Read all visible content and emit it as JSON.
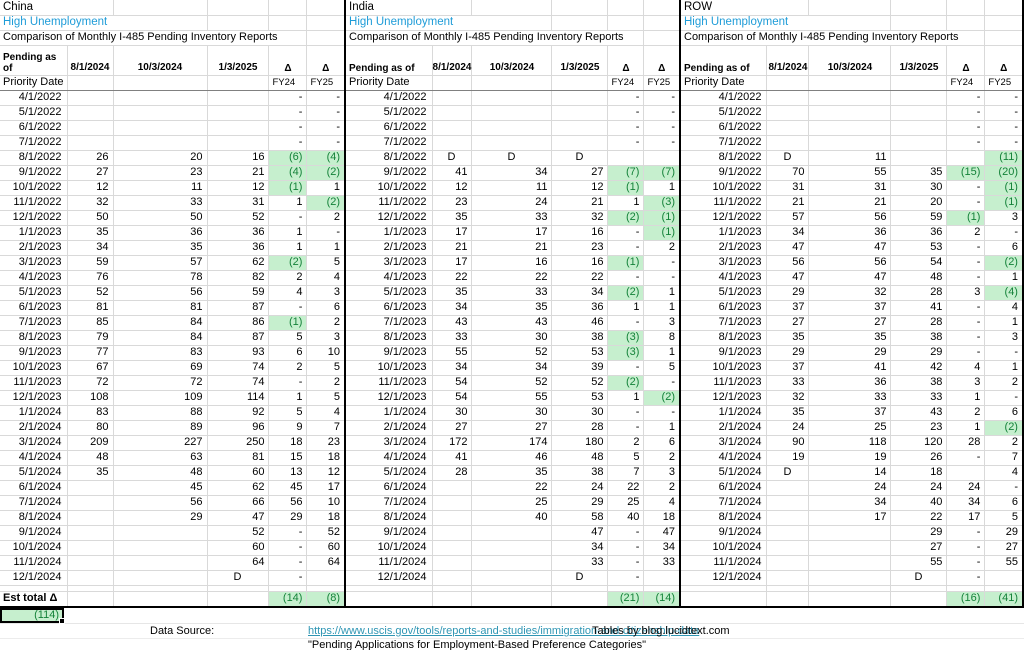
{
  "colors": {
    "accent_blue": "#1E9CD8",
    "good_fill": "#C6EFCE",
    "good_text": "#148239",
    "link": "#2F96B4",
    "grid": "#D9D9D9"
  },
  "columns": {
    "report_dates": [
      "8/1/2024",
      "10/3/2024",
      "1/3/2025"
    ],
    "delta_symbol": "Δ",
    "fy_labels": [
      "FY24",
      "FY25"
    ],
    "priority_label": "Priority Date"
  },
  "panels": [
    {
      "region": "China",
      "subtitle": "High Unemployment",
      "caption": "Comparison of Monthly I-485 Pending Inventory Reports",
      "pending_label": "Pending as\nof",
      "est_label": "Est total Δ",
      "est": [
        "(14)",
        "(8)"
      ],
      "rows": [
        [
          "4/1/2022",
          "",
          "",
          "",
          "-",
          "-"
        ],
        [
          "5/1/2022",
          "",
          "",
          "",
          "-",
          "-"
        ],
        [
          "6/1/2022",
          "",
          "",
          "",
          "-",
          "-"
        ],
        [
          "7/1/2022",
          "",
          "",
          "",
          "-",
          "-"
        ],
        [
          "8/1/2022",
          "26",
          "20",
          "16",
          "(6)",
          "(4)"
        ],
        [
          "9/1/2022",
          "27",
          "23",
          "21",
          "(4)",
          "(2)"
        ],
        [
          "10/1/2022",
          "12",
          "11",
          "12",
          "(1)",
          "1"
        ],
        [
          "11/1/2022",
          "32",
          "33",
          "31",
          "1",
          "(2)"
        ],
        [
          "12/1/2022",
          "50",
          "50",
          "52",
          "-",
          "2"
        ],
        [
          "1/1/2023",
          "35",
          "36",
          "36",
          "1",
          "-"
        ],
        [
          "2/1/2023",
          "34",
          "35",
          "36",
          "1",
          "1"
        ],
        [
          "3/1/2023",
          "59",
          "57",
          "62",
          "(2)",
          "5"
        ],
        [
          "4/1/2023",
          "76",
          "78",
          "82",
          "2",
          "4"
        ],
        [
          "5/1/2023",
          "52",
          "56",
          "59",
          "4",
          "3"
        ],
        [
          "6/1/2023",
          "81",
          "81",
          "87",
          "-",
          "6"
        ],
        [
          "7/1/2023",
          "85",
          "84",
          "86",
          "(1)",
          "2"
        ],
        [
          "8/1/2023",
          "79",
          "84",
          "87",
          "5",
          "3"
        ],
        [
          "9/1/2023",
          "77",
          "83",
          "93",
          "6",
          "10"
        ],
        [
          "10/1/2023",
          "67",
          "69",
          "74",
          "2",
          "5"
        ],
        [
          "11/1/2023",
          "72",
          "72",
          "74",
          "-",
          "2"
        ],
        [
          "12/1/2023",
          "108",
          "109",
          "114",
          "1",
          "5"
        ],
        [
          "1/1/2024",
          "83",
          "88",
          "92",
          "5",
          "4"
        ],
        [
          "2/1/2024",
          "80",
          "89",
          "96",
          "9",
          "7"
        ],
        [
          "3/1/2024",
          "209",
          "227",
          "250",
          "18",
          "23"
        ],
        [
          "4/1/2024",
          "48",
          "63",
          "81",
          "15",
          "18"
        ],
        [
          "5/1/2024",
          "35",
          "48",
          "60",
          "13",
          "12"
        ],
        [
          "6/1/2024",
          "",
          "45",
          "62",
          "45",
          "17"
        ],
        [
          "7/1/2024",
          "",
          "56",
          "66",
          "56",
          "10"
        ],
        [
          "8/1/2024",
          "",
          "29",
          "47",
          "29",
          "18"
        ],
        [
          "9/1/2024",
          "",
          "",
          "52",
          "-",
          "52"
        ],
        [
          "10/1/2024",
          "",
          "",
          "60",
          "-",
          "60"
        ],
        [
          "11/1/2024",
          "",
          "",
          "64",
          "-",
          "64"
        ],
        [
          "12/1/2024",
          "",
          "",
          "D",
          "-",
          ""
        ]
      ]
    },
    {
      "region": "India",
      "subtitle": "High Unemployment",
      "caption": "Comparison of Monthly I-485 Pending Inventory Reports",
      "pending_label": "Pending as of",
      "est_label": "",
      "est": [
        "(21)",
        "(14)"
      ],
      "rows": [
        [
          "4/1/2022",
          "",
          "",
          "",
          "-",
          "-"
        ],
        [
          "5/1/2022",
          "",
          "",
          "",
          "-",
          "-"
        ],
        [
          "6/1/2022",
          "",
          "",
          "",
          "-",
          "-"
        ],
        [
          "7/1/2022",
          "",
          "",
          "",
          "-",
          "-"
        ],
        [
          "8/1/2022",
          "D",
          "D",
          "D",
          "",
          ""
        ],
        [
          "9/1/2022",
          "41",
          "34",
          "27",
          "(7)",
          "(7)"
        ],
        [
          "10/1/2022",
          "12",
          "11",
          "12",
          "(1)",
          "1"
        ],
        [
          "11/1/2022",
          "23",
          "24",
          "21",
          "1",
          "(3)"
        ],
        [
          "12/1/2022",
          "35",
          "33",
          "32",
          "(2)",
          "(1)"
        ],
        [
          "1/1/2023",
          "17",
          "17",
          "16",
          "-",
          "(1)"
        ],
        [
          "2/1/2023",
          "21",
          "21",
          "23",
          "-",
          "2"
        ],
        [
          "3/1/2023",
          "17",
          "16",
          "16",
          "(1)",
          "-"
        ],
        [
          "4/1/2023",
          "22",
          "22",
          "22",
          "-",
          "-"
        ],
        [
          "5/1/2023",
          "35",
          "33",
          "34",
          "(2)",
          "1"
        ],
        [
          "6/1/2023",
          "34",
          "35",
          "36",
          "1",
          "1"
        ],
        [
          "7/1/2023",
          "43",
          "43",
          "46",
          "-",
          "3"
        ],
        [
          "8/1/2023",
          "33",
          "30",
          "38",
          "(3)",
          "8"
        ],
        [
          "9/1/2023",
          "55",
          "52",
          "53",
          "(3)",
          "1"
        ],
        [
          "10/1/2023",
          "34",
          "34",
          "39",
          "-",
          "5"
        ],
        [
          "11/1/2023",
          "54",
          "52",
          "52",
          "(2)",
          "-"
        ],
        [
          "12/1/2023",
          "54",
          "55",
          "53",
          "1",
          "(2)"
        ],
        [
          "1/1/2024",
          "30",
          "30",
          "30",
          "-",
          "-"
        ],
        [
          "2/1/2024",
          "27",
          "27",
          "28",
          "-",
          "1"
        ],
        [
          "3/1/2024",
          "172",
          "174",
          "180",
          "2",
          "6"
        ],
        [
          "4/1/2024",
          "41",
          "46",
          "48",
          "5",
          "2"
        ],
        [
          "5/1/2024",
          "28",
          "35",
          "38",
          "7",
          "3"
        ],
        [
          "6/1/2024",
          "",
          "22",
          "24",
          "22",
          "2"
        ],
        [
          "7/1/2024",
          "",
          "25",
          "29",
          "25",
          "4"
        ],
        [
          "8/1/2024",
          "",
          "40",
          "58",
          "40",
          "18"
        ],
        [
          "9/1/2024",
          "",
          "",
          "47",
          "-",
          "47"
        ],
        [
          "10/1/2024",
          "",
          "",
          "34",
          "-",
          "34"
        ],
        [
          "11/1/2024",
          "",
          "",
          "33",
          "-",
          "33"
        ],
        [
          "12/1/2024",
          "",
          "",
          "D",
          "-",
          ""
        ]
      ]
    },
    {
      "region": "ROW",
      "subtitle": "High Unemployment",
      "caption": "Comparison of Monthly I-485 Pending Inventory Reports",
      "pending_label": "Pending as of",
      "est_label": "",
      "est": [
        "(16)",
        "(41)"
      ],
      "rows": [
        [
          "4/1/2022",
          "",
          "",
          "",
          "-",
          "-"
        ],
        [
          "5/1/2022",
          "",
          "",
          "",
          "-",
          "-"
        ],
        [
          "6/1/2022",
          "",
          "",
          "",
          "-",
          "-"
        ],
        [
          "7/1/2022",
          "",
          "",
          "",
          "-",
          "-"
        ],
        [
          "8/1/2022",
          "D",
          "11",
          "",
          "",
          "(11)"
        ],
        [
          "9/1/2022",
          "70",
          "55",
          "35",
          "(15)",
          "(20)"
        ],
        [
          "10/1/2022",
          "31",
          "31",
          "30",
          "-",
          "(1)"
        ],
        [
          "11/1/2022",
          "21",
          "21",
          "20",
          "-",
          "(1)"
        ],
        [
          "12/1/2022",
          "57",
          "56",
          "59",
          "(1)",
          "3"
        ],
        [
          "1/1/2023",
          "34",
          "36",
          "36",
          "2",
          "-"
        ],
        [
          "2/1/2023",
          "47",
          "47",
          "53",
          "-",
          "6"
        ],
        [
          "3/1/2023",
          "56",
          "56",
          "54",
          "-",
          "(2)"
        ],
        [
          "4/1/2023",
          "47",
          "47",
          "48",
          "-",
          "1"
        ],
        [
          "5/1/2023",
          "29",
          "32",
          "28",
          "3",
          "(4)"
        ],
        [
          "6/1/2023",
          "37",
          "37",
          "41",
          "-",
          "4"
        ],
        [
          "7/1/2023",
          "27",
          "27",
          "28",
          "-",
          "1"
        ],
        [
          "8/1/2023",
          "35",
          "35",
          "38",
          "-",
          "3"
        ],
        [
          "9/1/2023",
          "29",
          "29",
          "29",
          "-",
          "-"
        ],
        [
          "10/1/2023",
          "37",
          "41",
          "42",
          "4",
          "1"
        ],
        [
          "11/1/2023",
          "33",
          "36",
          "38",
          "3",
          "2"
        ],
        [
          "12/1/2023",
          "32",
          "33",
          "33",
          "1",
          "-"
        ],
        [
          "1/1/2024",
          "35",
          "37",
          "43",
          "2",
          "6"
        ],
        [
          "2/1/2024",
          "24",
          "25",
          "23",
          "1",
          "(2)"
        ],
        [
          "3/1/2024",
          "90",
          "118",
          "120",
          "28",
          "2"
        ],
        [
          "4/1/2024",
          "19",
          "19",
          "26",
          "-",
          "7"
        ],
        [
          "5/1/2024",
          "D",
          "14",
          "18",
          "",
          "4"
        ],
        [
          "6/1/2024",
          "",
          "24",
          "24",
          "24",
          "-"
        ],
        [
          "7/1/2024",
          "",
          "34",
          "40",
          "34",
          "6"
        ],
        [
          "8/1/2024",
          "",
          "17",
          "22",
          "17",
          "5"
        ],
        [
          "9/1/2024",
          "",
          "",
          "29",
          "-",
          "29"
        ],
        [
          "10/1/2024",
          "",
          "",
          "27",
          "-",
          "27"
        ],
        [
          "11/1/2024",
          "",
          "",
          "55",
          "-",
          "55"
        ],
        [
          "12/1/2024",
          "",
          "",
          "D",
          "-",
          ""
        ]
      ]
    }
  ],
  "footer": {
    "grand_total": "(114)",
    "data_source_label": "Data Source:",
    "source_url": "https://www.uscis.gov/tools/reports-and-studies/immigration-and-citizenship-data",
    "source_quote": "\"Pending Applications for Employment-Based Preference Categories\"",
    "credit": "Tables by blog.lucidtext.com"
  }
}
